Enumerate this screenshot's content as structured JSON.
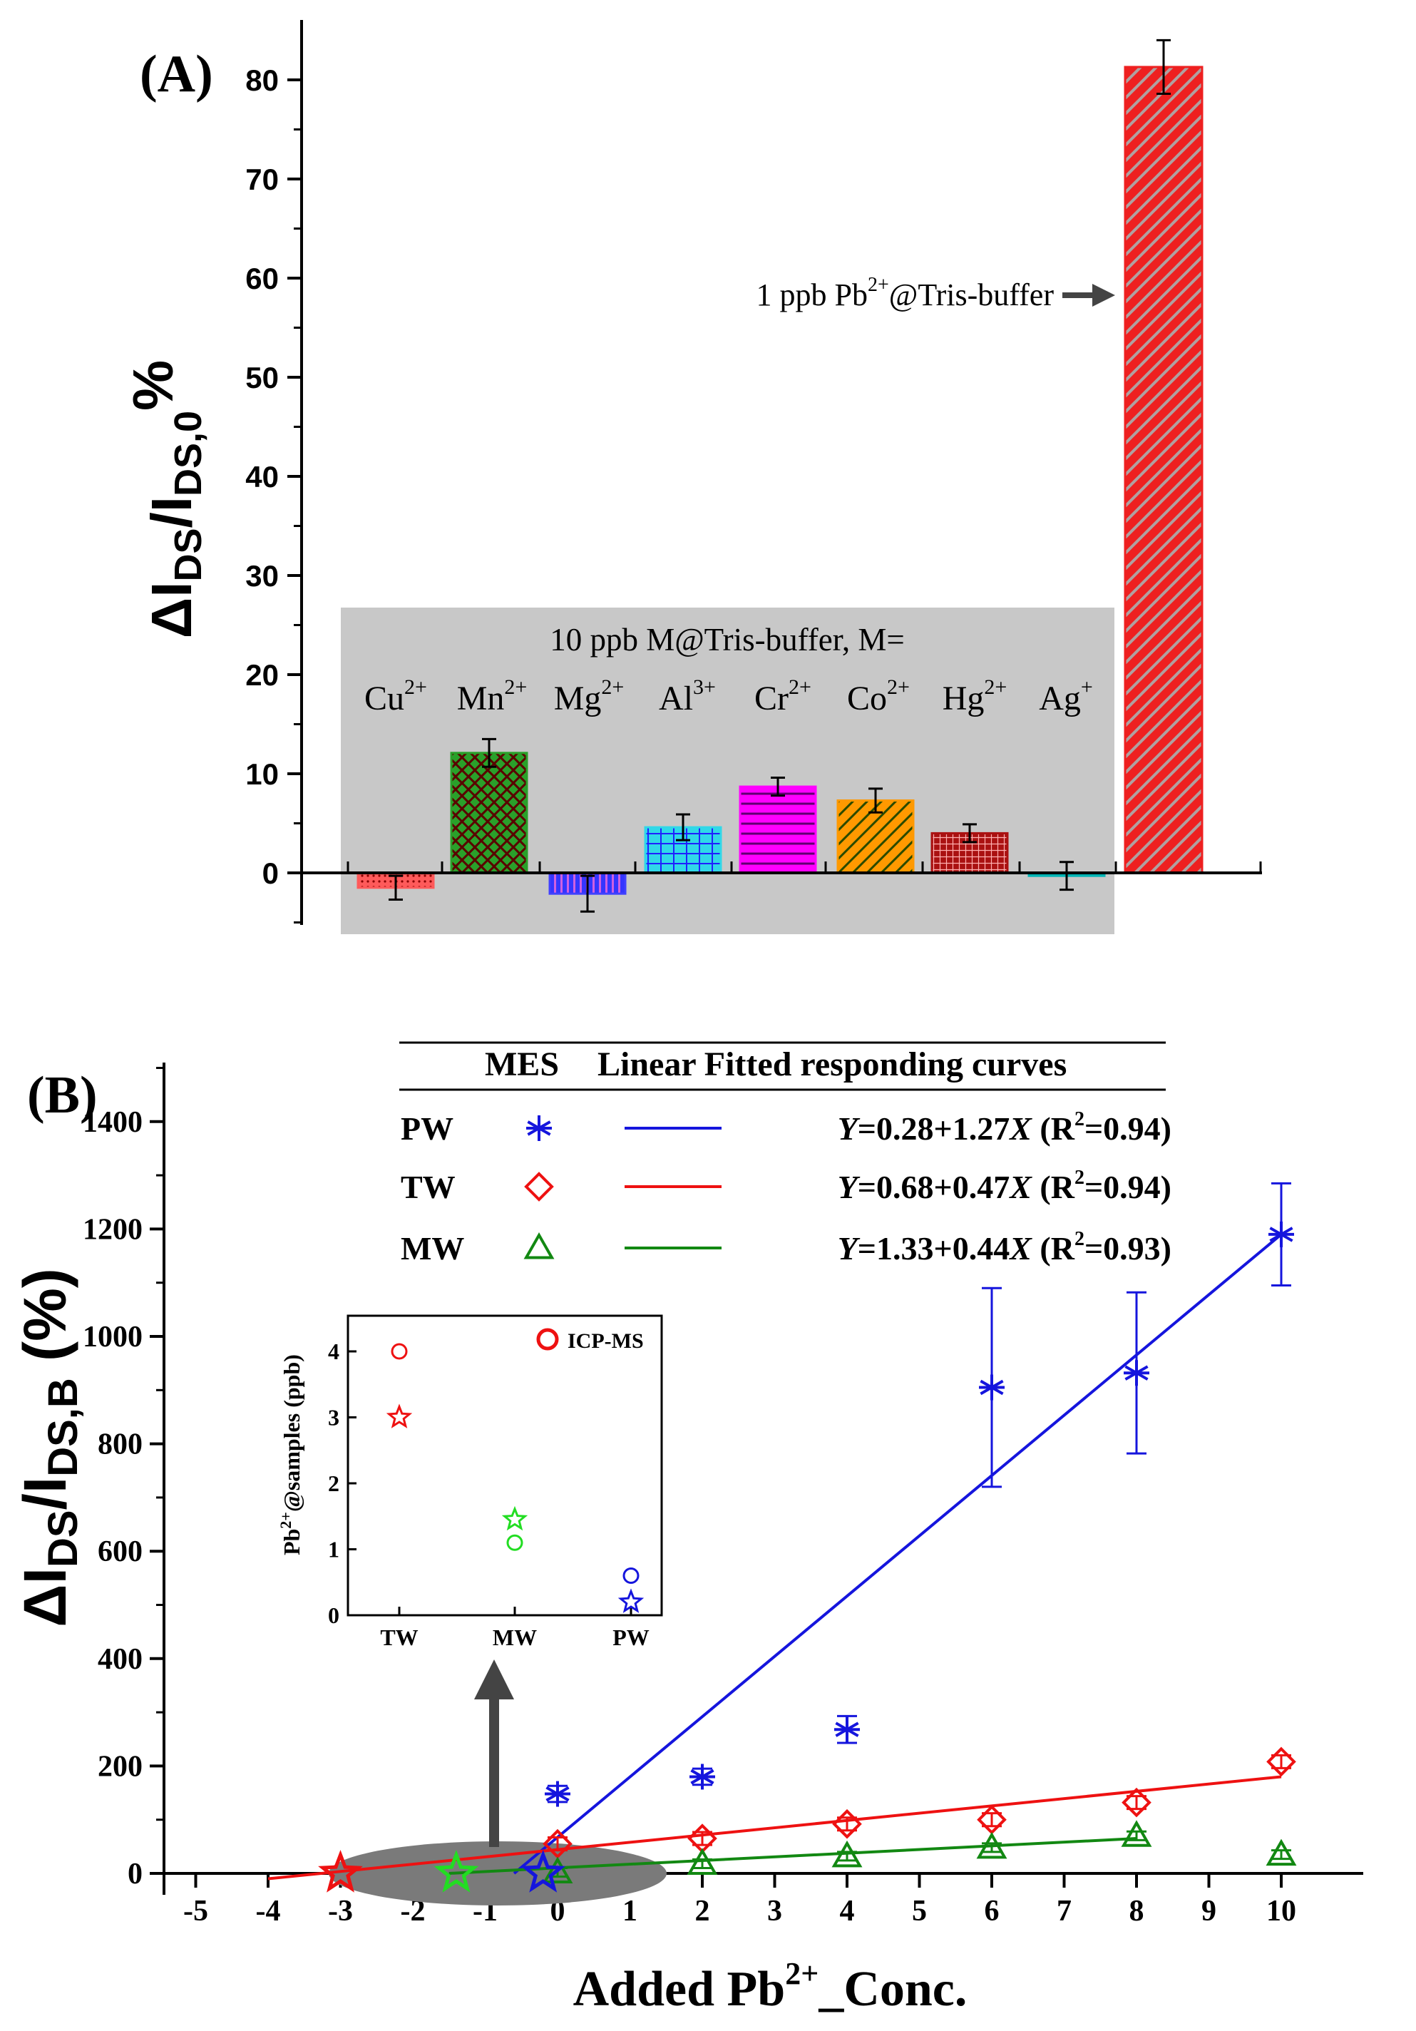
{
  "chart_data": [
    {
      "panel_label": "(A)",
      "type": "bar",
      "ylabel_main": "ΔI",
      "ylabel_sub1": "DS",
      "ylabel_mid": "/I",
      "ylabel_sub2": "DS,0",
      "ylabel_end": "%",
      "ylim": [
        -5,
        85
      ],
      "yticks": [
        0,
        10,
        20,
        30,
        40,
        50,
        60,
        70,
        80
      ],
      "group_title": "10 ppb M@Tris-buffer, M=",
      "categories": [
        {
          "ion": "Cu",
          "charge": "2+",
          "value": -1.5,
          "err": 1.2,
          "color": "#ff5a5a",
          "pattern": "dots"
        },
        {
          "ion": "Mn",
          "charge": "2+",
          "value": 12.1,
          "err": 1.4,
          "color": "#2aa02a",
          "pattern": "crosshatch"
        },
        {
          "ion": "Mg",
          "charge": "2+",
          "value": -2.1,
          "err": 1.8,
          "color": "#4040ff",
          "pattern": "vlines"
        },
        {
          "ion": "Al",
          "charge": "3+",
          "value": 4.6,
          "err": 1.3,
          "color": "#30d8e8",
          "pattern": "grid"
        },
        {
          "ion": "Cr",
          "charge": "2+",
          "value": 8.7,
          "err": 0.9,
          "color": "#ff00ff",
          "pattern": "hlines"
        },
        {
          "ion": "Co",
          "charge": "2+",
          "value": 7.3,
          "err": 1.2,
          "color": "#ff9900",
          "pattern": "diagonal"
        },
        {
          "ion": "Hg",
          "charge": "2+",
          "value": 4.0,
          "err": 0.9,
          "color": "#aa1111",
          "pattern": "finegrid"
        },
        {
          "ion": "Ag",
          "charge": "+",
          "value": -0.3,
          "err": 1.4,
          "color": "#00b4b4",
          "pattern": "none"
        }
      ],
      "highlight_bar": {
        "value": 81.3,
        "err": 2.7,
        "color": "#ee2020",
        "pattern": "diagonal"
      },
      "annotation_pre": "1 ppb Pb",
      "annotation_sup": "2+",
      "annotation_post": "@Tris-buffer"
    },
    {
      "panel_label": "(B)",
      "type": "scatter",
      "ylabel_main": "ΔI",
      "ylabel_sub1": "DS",
      "ylabel_mid": "/I",
      "ylabel_sub2": "DS,B",
      "ylabel_end": " (%)",
      "xlabel_pre": "Added Pb",
      "xlabel_sup": "2+",
      "xlabel_post": "_Conc.",
      "xlim": [
        -5.5,
        10.5
      ],
      "ylim": [
        -50,
        1500
      ],
      "xticks": [
        -5,
        -4,
        -3,
        -2,
        -1,
        0,
        1,
        2,
        3,
        4,
        5,
        6,
        7,
        8,
        9,
        10
      ],
      "yticks": [
        0,
        200,
        400,
        600,
        800,
        1000,
        1200,
        1400
      ],
      "legend": {
        "col1": "MES",
        "col2": "Linear Fitted responding curves",
        "rows": [
          {
            "label": "PW",
            "y0": "Y",
            "fit": "=0.28+1.27",
            "x0": "X",
            "r2a": " (R",
            "r2sup": "2",
            "r2b": "=0.94)"
          },
          {
            "label": "TW",
            "y0": "Y",
            "fit": "=0.68+0.47",
            "x0": "X",
            "r2a": " (R",
            "r2sup": "2",
            "r2b": "=0.94)"
          },
          {
            "label": "MW",
            "y0": "Y",
            "fit": "=1.33+0.44",
            "x0": "X",
            "r2a": " (R",
            "r2sup": "2",
            "r2b": "=0.93)"
          }
        ]
      },
      "series": [
        {
          "name": "PW",
          "color": "#1515dd",
          "marker": "asterisk",
          "points": [
            [
              0,
              148,
              15
            ],
            [
              2,
              180,
              15
            ],
            [
              4,
              268,
              25
            ],
            [
              6,
              905,
              185
            ],
            [
              8,
              932,
              150
            ],
            [
              10,
              1190,
              95
            ]
          ],
          "fit": {
            "x0": -0.6,
            "x1": 10,
            "y0": 0,
            "y1": 1190
          }
        },
        {
          "name": "TW",
          "color": "#ee1111",
          "marker": "diamond",
          "points": [
            [
              0,
              55,
              12
            ],
            [
              2,
              65,
              12
            ],
            [
              4,
              92,
              12
            ],
            [
              6,
              100,
              12
            ],
            [
              8,
              132,
              12
            ],
            [
              10,
              208,
              12
            ]
          ],
          "fit": {
            "x0": -4,
            "x1": 10,
            "y0": -10,
            "y1": 180
          }
        },
        {
          "name": "MW",
          "color": "#128812",
          "marker": "triangle",
          "points": [
            [
              0,
              2,
              8
            ],
            [
              2,
              18,
              8
            ],
            [
              4,
              32,
              8
            ],
            [
              6,
              48,
              8
            ],
            [
              8,
              70,
              8
            ],
            [
              10,
              35,
              8
            ]
          ],
          "fit": {
            "x0": -1.5,
            "x1": 8,
            "y0": 0,
            "y1": 65
          }
        }
      ],
      "intercept_stars": [
        {
          "x": -3.0,
          "color": "#ee1111"
        },
        {
          "x": -1.4,
          "color": "#22dd22"
        },
        {
          "x": -0.2,
          "color": "#1515dd"
        }
      ],
      "inset": {
        "ylabel_pre": "Pb",
        "ylabel_sup": "2+",
        "ylabel_post": "@samples (ppb)",
        "categories": [
          "TW",
          "MW",
          "PW"
        ],
        "yticks": [
          0,
          1,
          2,
          3,
          4
        ],
        "ylim": [
          0,
          4.3
        ],
        "icp_ms": [
          4.0,
          1.1,
          0.6
        ],
        "mes_stars": [
          3.0,
          1.45,
          0.2
        ],
        "colors": [
          "#ee1111",
          "#22dd22",
          "#1515dd"
        ],
        "legend_label": "ICP-MS"
      }
    }
  ]
}
